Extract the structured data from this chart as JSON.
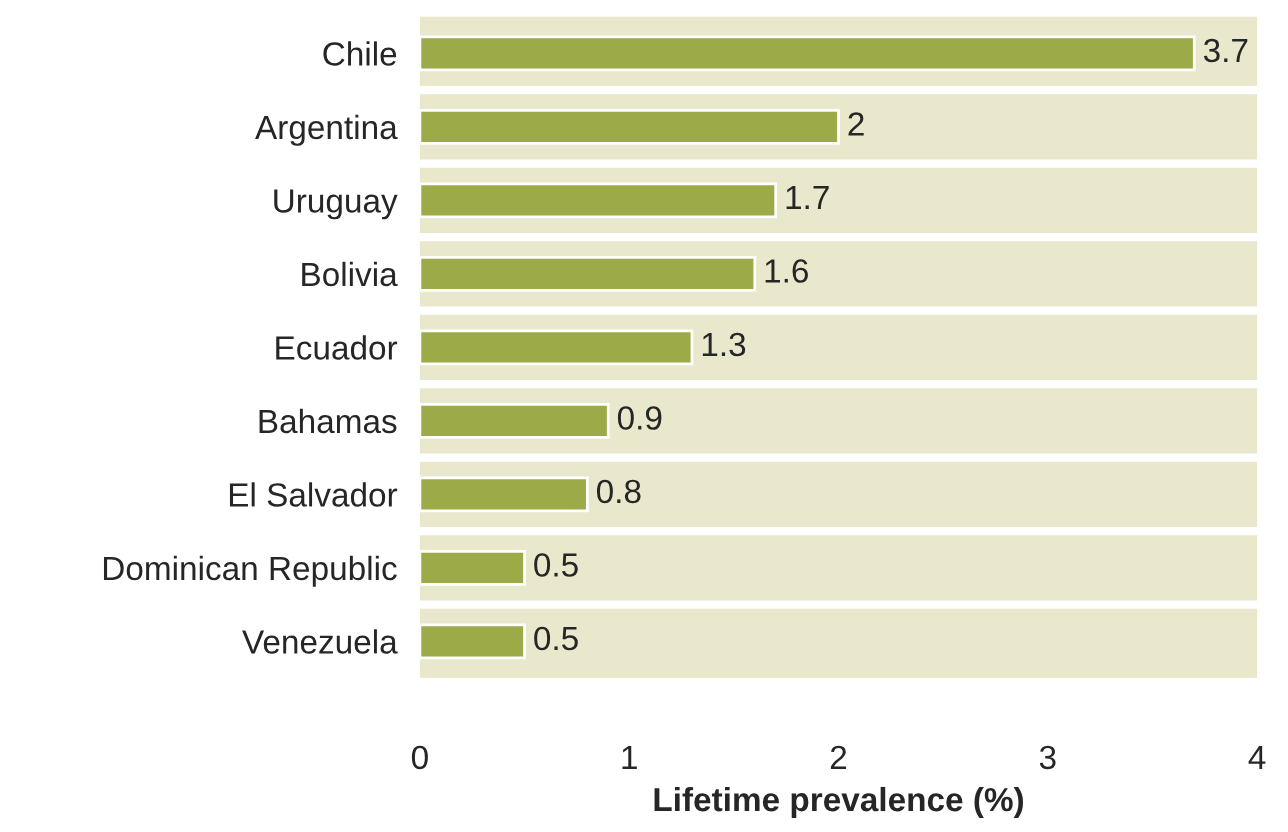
{
  "chart_data": {
    "type": "bar",
    "orientation": "horizontal",
    "xlabel": "Lifetime prevalence (%)",
    "categories": [
      "Chile",
      "Argentina",
      "Uruguay",
      "Bolivia",
      "Ecuador",
      "Bahamas",
      "El Salvador",
      "Dominican Republic",
      "Venezuela"
    ],
    "values": [
      3.7,
      2,
      1.7,
      1.6,
      1.3,
      0.9,
      0.8,
      0.5,
      0.5
    ],
    "color": "#9cab48",
    "xlim": [
      0,
      4
    ],
    "xticks": [
      0,
      1,
      2,
      3,
      4
    ],
    "data_labels": true,
    "grid": false,
    "legend": false
  }
}
